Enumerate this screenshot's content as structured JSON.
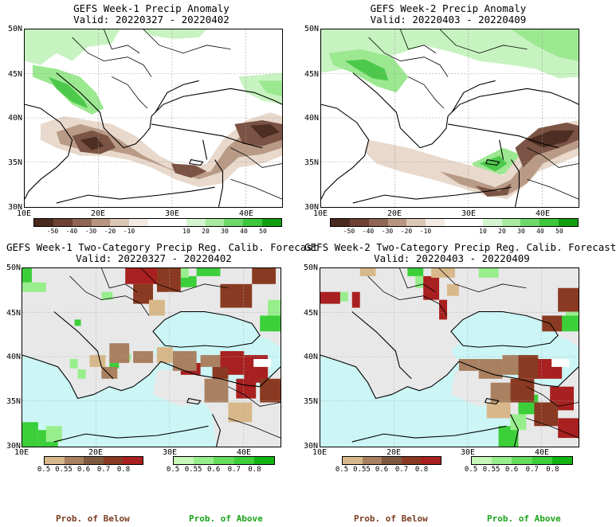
{
  "colors": {
    "ocean_cat": "#ccf5f5",
    "land_cat": "#e8e8e8",
    "below": "#7a1f1f",
    "above": "#1fb81f",
    "below_label": "#7a3b1f",
    "above_label": "#1aa51a"
  },
  "panels": {
    "p1": {
      "title": "GEFS Week-1 Precip Anomaly",
      "valid": "Valid: 20220327 - 20220402"
    },
    "p2": {
      "title": "GEFS Week-2 Precip Anomaly",
      "valid": "Valid: 20220403 - 20220409"
    },
    "p3": {
      "title": "GEFS Week-1 Two-Category Precip Reg. Calib. Forecast",
      "valid": "Valid: 20220327 - 20220402"
    },
    "p4": {
      "title": "GEFS Week-2 Two-Category Precip Reg. Calib. Forecast",
      "valid": "Valid: 20220403 - 20220409"
    }
  },
  "axes": {
    "lat_labels": [
      "50N",
      "45N",
      "40N",
      "35N",
      "30N"
    ],
    "lon_labels": [
      "10E",
      "20E",
      "30E",
      "40E"
    ]
  },
  "anomaly_colorbar": {
    "colors": [
      "#4a2a1e",
      "#6e4232",
      "#8f6554",
      "#b8957f",
      "#dcc7b5",
      "#f3ebe3",
      "#ffffff",
      "#ffffff",
      "#d4f5d0",
      "#a8eaa0",
      "#6fd86a",
      "#3ec63d",
      "#119e11"
    ],
    "ticks": [
      "-50",
      "-40",
      "-30",
      "-20",
      "-10",
      "10",
      "20",
      "30",
      "40",
      "50"
    ]
  },
  "prob_colorbar": {
    "below_colors": [
      "#d8b88a",
      "#a98060",
      "#7f5a3f",
      "#8a3a22",
      "#a82020"
    ],
    "above_colors": [
      "#c6f7b8",
      "#98ee8c",
      "#66dd5c",
      "#3ccf3a",
      "#13b313"
    ],
    "ticks": [
      "0.5",
      "0.55",
      "0.6",
      "0.7",
      "0.8"
    ],
    "below_caption": "Prob. of Below",
    "above_caption": "Prob. of Above"
  }
}
